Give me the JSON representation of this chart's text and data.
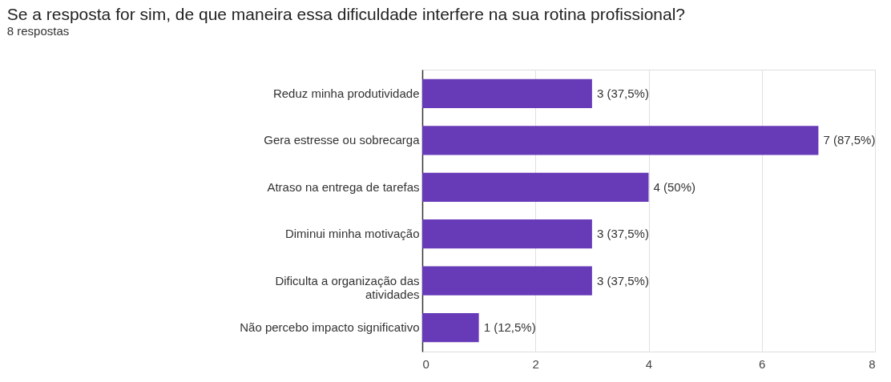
{
  "chart_data": {
    "type": "bar",
    "orientation": "horizontal",
    "title": "Se a resposta for sim, de que maneira essa dificuldade interfere na sua rotina profissional?",
    "subtitle": "8 respostas",
    "categories": [
      "Reduz minha produtividade",
      "Gera estresse ou sobrecarga",
      "Atraso na entrega de tarefas",
      "Diminui minha motivação",
      "Dificulta a organização das atividades",
      "Não percebo impacto significativo"
    ],
    "values": [
      3,
      7,
      4,
      3,
      3,
      1
    ],
    "value_labels": [
      "3 (37,5%)",
      "7 (87,5%)",
      "4 (50%)",
      "3 (37,5%)",
      "3 (37,5%)",
      "1 (12,5%)"
    ],
    "color": "#673ab7",
    "xlim": [
      0,
      8
    ],
    "xticks": [
      0,
      2,
      4,
      6,
      8
    ],
    "grid": "x"
  }
}
